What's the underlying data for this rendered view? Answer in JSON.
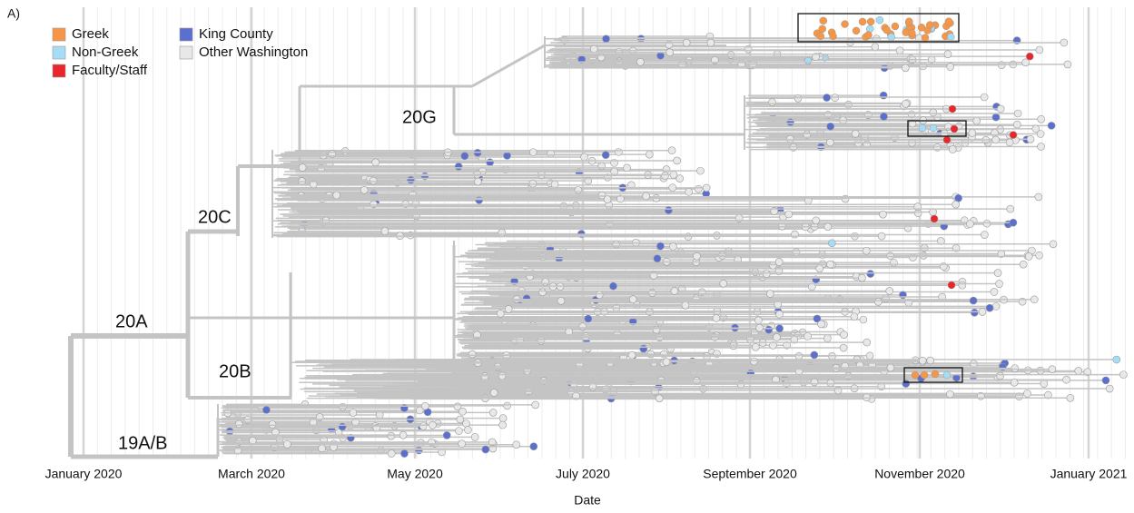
{
  "panel_label": "A)",
  "legend": [
    {
      "label": "Greek",
      "color": "#f79646"
    },
    {
      "label": "Non-Greek",
      "color": "#a6dcf5"
    },
    {
      "label": "Faculty/Staff",
      "color": "#e8262b"
    },
    {
      "label": "King County",
      "color": "#5b6fcf"
    },
    {
      "label": "Other Washington",
      "color": "#e8e8e8"
    }
  ],
  "clades": [
    "20G",
    "20C",
    "20A",
    "20B",
    "19A/B"
  ],
  "x_axis": {
    "title": "Date",
    "ticks": [
      "January 2020",
      "March 2020",
      "May 2020",
      "July 2020",
      "September 2020",
      "November 2020",
      "January 2021"
    ]
  }
}
